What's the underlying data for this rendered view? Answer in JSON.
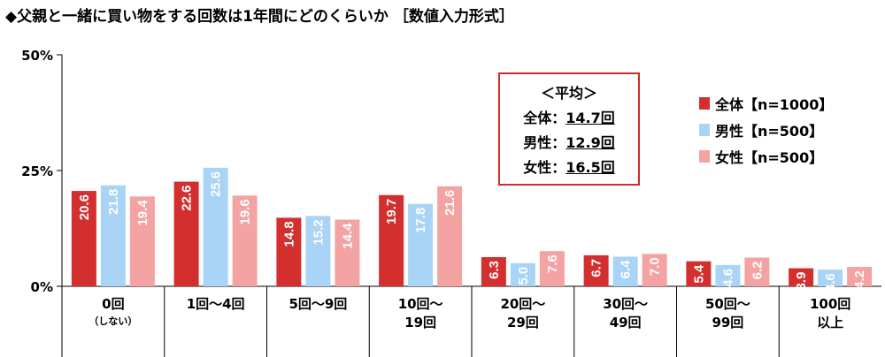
{
  "title": "◆父親と一緒に買い物をする回数は1年間にどのくらいか ［数値入力形式］",
  "average_box": {
    "header": "＜平均＞",
    "rows": [
      {
        "label": "全体：",
        "value": "14.7回"
      },
      {
        "label": "男性：",
        "value": "12.9回"
      },
      {
        "label": "女性：",
        "value": "16.5回"
      }
    ]
  },
  "colors": {
    "all": "#d32f2f",
    "male": "#a9d4f5",
    "female": "#f4a3a3"
  },
  "chart_data": {
    "type": "bar",
    "title": "◆父親と一緒に買い物をする回数は1年間にどのくらいか ［数値入力形式］",
    "categories": [
      [
        "0回",
        "（しない）"
      ],
      [
        "1回～4回"
      ],
      [
        "5回～9回"
      ],
      [
        "10回～",
        "19回"
      ],
      [
        "20回～",
        "29回"
      ],
      [
        "30回～",
        "49回"
      ],
      [
        "50回～",
        "99回"
      ],
      [
        "100回",
        "以上"
      ]
    ],
    "series": [
      {
        "name": "全体【n=1000】",
        "values": [
          20.6,
          22.6,
          14.8,
          19.7,
          6.3,
          6.7,
          5.4,
          3.9
        ]
      },
      {
        "name": "男性【n=500】",
        "values": [
          21.8,
          25.6,
          15.2,
          17.8,
          5.0,
          6.4,
          4.6,
          3.6
        ]
      },
      {
        "name": "女性【n=500】",
        "values": [
          19.4,
          19.6,
          14.4,
          21.6,
          7.6,
          7.0,
          6.2,
          4.2
        ]
      }
    ],
    "yticks": [
      "0%",
      "25%",
      "50%"
    ],
    "ylim": [
      0,
      50
    ],
    "legend": "top-right",
    "grid": false
  }
}
